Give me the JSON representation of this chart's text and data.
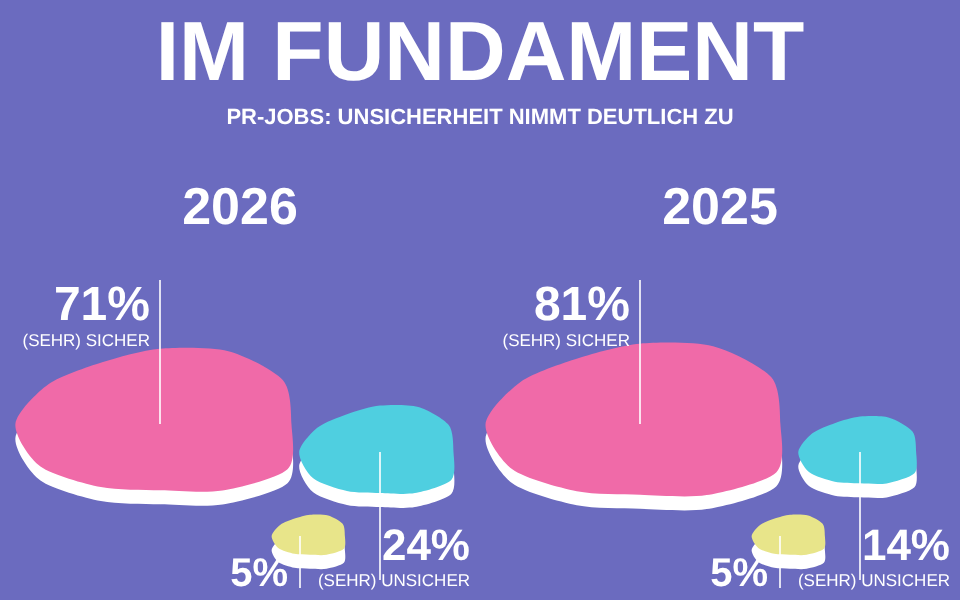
{
  "chart_data": [
    {
      "type": "other",
      "title": "IM FUNDAMENT",
      "subtitle": "PR-JOBS: UNSICHERHEIT NIMMT DEUTLICH ZU"
    },
    {
      "type": "other",
      "title": "2026",
      "categories": [
        "(SEHR) SICHER",
        "(SEHR) UNSICHER",
        null
      ],
      "values": [
        71,
        24,
        5
      ],
      "value_labels": [
        "71%",
        "24%",
        "5%"
      ],
      "colors": [
        "#f06aa8",
        "#4fcfe0",
        "#e8e58a"
      ]
    },
    {
      "type": "other",
      "title": "2025",
      "categories": [
        "(SEHR) SICHER",
        "(SEHR) UNSICHER",
        null
      ],
      "values": [
        81,
        14,
        5
      ],
      "value_labels": [
        "81%",
        "14%",
        "5%"
      ],
      "colors": [
        "#f06aa8",
        "#4fcfe0",
        "#e8e58a"
      ]
    }
  ]
}
